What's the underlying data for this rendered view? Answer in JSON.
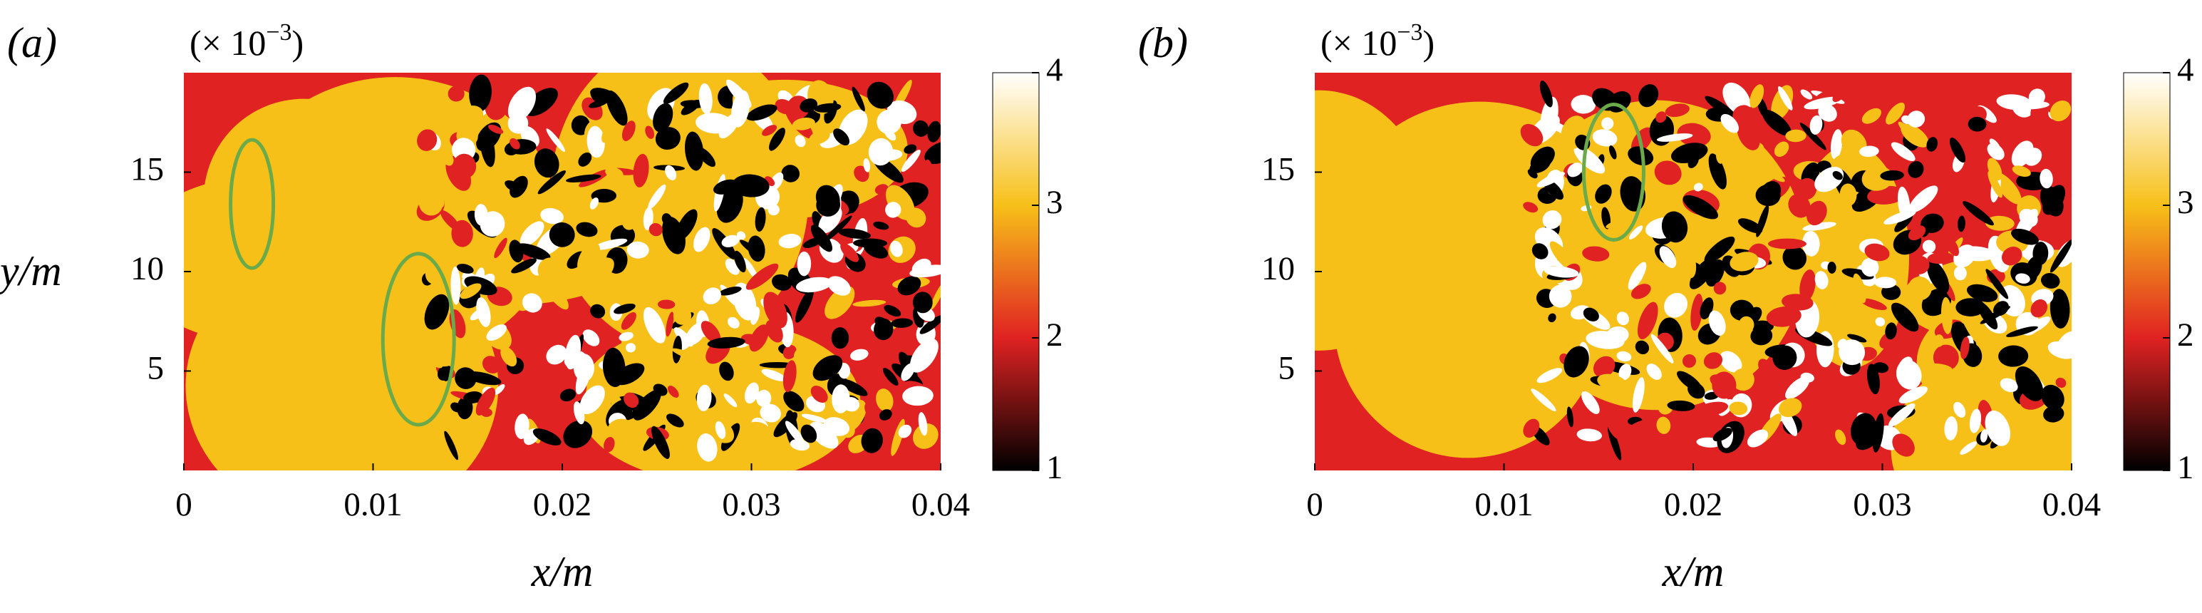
{
  "chart_data": [
    {
      "type": "heatmap",
      "panel_label": "(a)",
      "multiplier": {
        "prefix": "(× 10",
        "exponent": "−3",
        "suffix": ")"
      },
      "x_label": "x/m",
      "y_label": "y/m",
      "xlim": [
        0,
        0.04
      ],
      "xticks": [
        0,
        0.01,
        0.02,
        0.03,
        0.04
      ],
      "ylim": [
        0,
        20
      ],
      "yticks": [
        5,
        10,
        15
      ],
      "colorbar": {
        "clim": [
          1,
          4
        ],
        "ticks": [
          1,
          2,
          3,
          4
        ],
        "colors": [
          "#000000",
          "#e02222",
          "#f7c019",
          "#ffffff"
        ]
      }
    },
    {
      "type": "heatmap",
      "panel_label": "(b)",
      "multiplier": {
        "prefix": "(× 10",
        "exponent": "−3",
        "suffix": ")"
      },
      "x_label": "x/m",
      "xlim": [
        0,
        0.04
      ],
      "xticks": [
        0,
        0.01,
        0.02,
        0.03,
        0.04
      ],
      "ylim": [
        0,
        20
      ],
      "yticks": [
        5,
        10,
        15
      ],
      "colorbar": {
        "clim": [
          1,
          4
        ],
        "ticks": [
          1,
          2,
          3,
          4
        ],
        "colors": [
          "#000000",
          "#e02222",
          "#f7c019",
          "#ffffff"
        ]
      }
    }
  ]
}
